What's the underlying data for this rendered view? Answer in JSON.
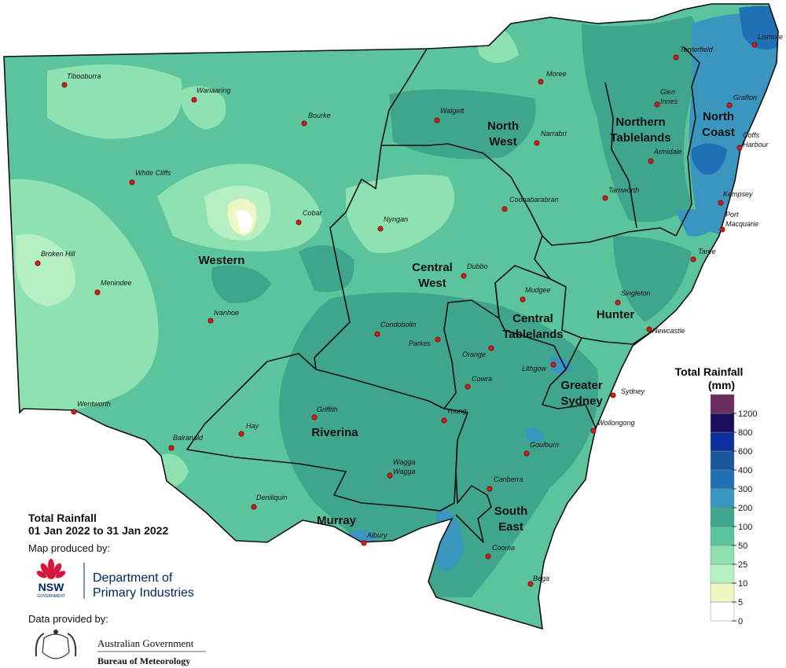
{
  "title": {
    "lines": [
      "Total Rainfall",
      "01 Jan 2022 to 31 Jan 2022"
    ]
  },
  "legend": {
    "title": {
      "lines": [
        "Total Rainfall",
        "(mm)"
      ]
    },
    "ticks": [
      0,
      5,
      10,
      25,
      50,
      100,
      200,
      300,
      400,
      600,
      800,
      1200
    ],
    "colors": [
      "#ffffff",
      "#eef6c4",
      "#b6efc2",
      "#8ee2b1",
      "#5cc49c",
      "#3fa68d",
      "#3a95bf",
      "#1f70b5",
      "#18589a",
      "#0d2f9c",
      "#1b0f5b",
      "#6d2c60"
    ]
  },
  "regions": [
    {
      "lines": [
        "Western"
      ]
    },
    {
      "lines": [
        "North",
        "West"
      ]
    },
    {
      "lines": [
        "Northern",
        "Tablelands"
      ]
    },
    {
      "lines": [
        "North",
        "Coast"
      ]
    },
    {
      "lines": [
        "Central",
        "West"
      ]
    },
    {
      "lines": [
        "Central",
        "Tablelands"
      ]
    },
    {
      "lines": [
        "Hunter"
      ]
    },
    {
      "lines": [
        "Greater",
        "Sydney"
      ]
    },
    {
      "lines": [
        "Riverina"
      ]
    },
    {
      "lines": [
        "Murray"
      ]
    },
    {
      "lines": [
        "South",
        "East"
      ]
    }
  ],
  "towns": [
    {
      "lines": [
        "Tibooburra"
      ]
    },
    {
      "lines": [
        "Wanaaring"
      ]
    },
    {
      "lines": [
        "Bourke"
      ]
    },
    {
      "lines": [
        "White Cliffs"
      ]
    },
    {
      "lines": [
        "Cobar"
      ]
    },
    {
      "lines": [
        "Broken Hill"
      ]
    },
    {
      "lines": [
        "Menindee"
      ]
    },
    {
      "lines": [
        "Ivanhoe"
      ]
    },
    {
      "lines": [
        "Wentworth"
      ]
    },
    {
      "lines": [
        "Balranald"
      ]
    },
    {
      "lines": [
        "Hay"
      ]
    },
    {
      "lines": [
        "Deniliquin"
      ]
    },
    {
      "lines": [
        "Griffith"
      ]
    },
    {
      "lines": [
        "Moree"
      ]
    },
    {
      "lines": [
        "Walgett"
      ]
    },
    {
      "lines": [
        "Narrabri"
      ]
    },
    {
      "lines": [
        "Nyngan"
      ]
    },
    {
      "lines": [
        "Coonabarabran"
      ]
    },
    {
      "lines": [
        "Dubbo"
      ]
    },
    {
      "lines": [
        "Condobolin"
      ]
    },
    {
      "lines": [
        "Parkes"
      ]
    },
    {
      "lines": [
        "Mudgee"
      ]
    },
    {
      "lines": [
        "Orange"
      ]
    },
    {
      "lines": [
        "Lithgow"
      ]
    },
    {
      "lines": [
        "Cowra"
      ]
    },
    {
      "lines": [
        "Young"
      ]
    },
    {
      "lines": [
        "Wagga",
        "Wagga"
      ]
    },
    {
      "lines": [
        "Albury"
      ]
    },
    {
      "lines": [
        "Canberra"
      ]
    },
    {
      "lines": [
        "Goulburn"
      ]
    },
    {
      "lines": [
        "Cooma"
      ]
    },
    {
      "lines": [
        "Bega"
      ]
    },
    {
      "lines": [
        "Wollongong"
      ]
    },
    {
      "lines": [
        "Sydney"
      ]
    },
    {
      "lines": [
        "Newcastle"
      ]
    },
    {
      "lines": [
        "Singleton"
      ]
    },
    {
      "lines": [
        "Taree"
      ]
    },
    {
      "lines": [
        "Port",
        "Macquarie"
      ]
    },
    {
      "lines": [
        "Kempsey"
      ]
    },
    {
      "lines": [
        "Coffs",
        "Harbour"
      ]
    },
    {
      "lines": [
        "Grafton"
      ]
    },
    {
      "lines": [
        "Glen",
        "Innes"
      ]
    },
    {
      "lines": [
        "Armidale"
      ]
    },
    {
      "lines": [
        "Tamworth"
      ]
    },
    {
      "lines": [
        "Tenterfield"
      ]
    },
    {
      "lines": [
        "Lismore"
      ]
    }
  ],
  "credits": {
    "produced_by": "Map produced by:",
    "nsw": "NSW",
    "government": "GOVERNMENT",
    "department": {
      "lines": [
        "Department of",
        "Primary Industries"
      ]
    },
    "data_by": "Data provided by:",
    "australian_government": "Australian Government",
    "bom": "Bureau of Meteorology"
  }
}
